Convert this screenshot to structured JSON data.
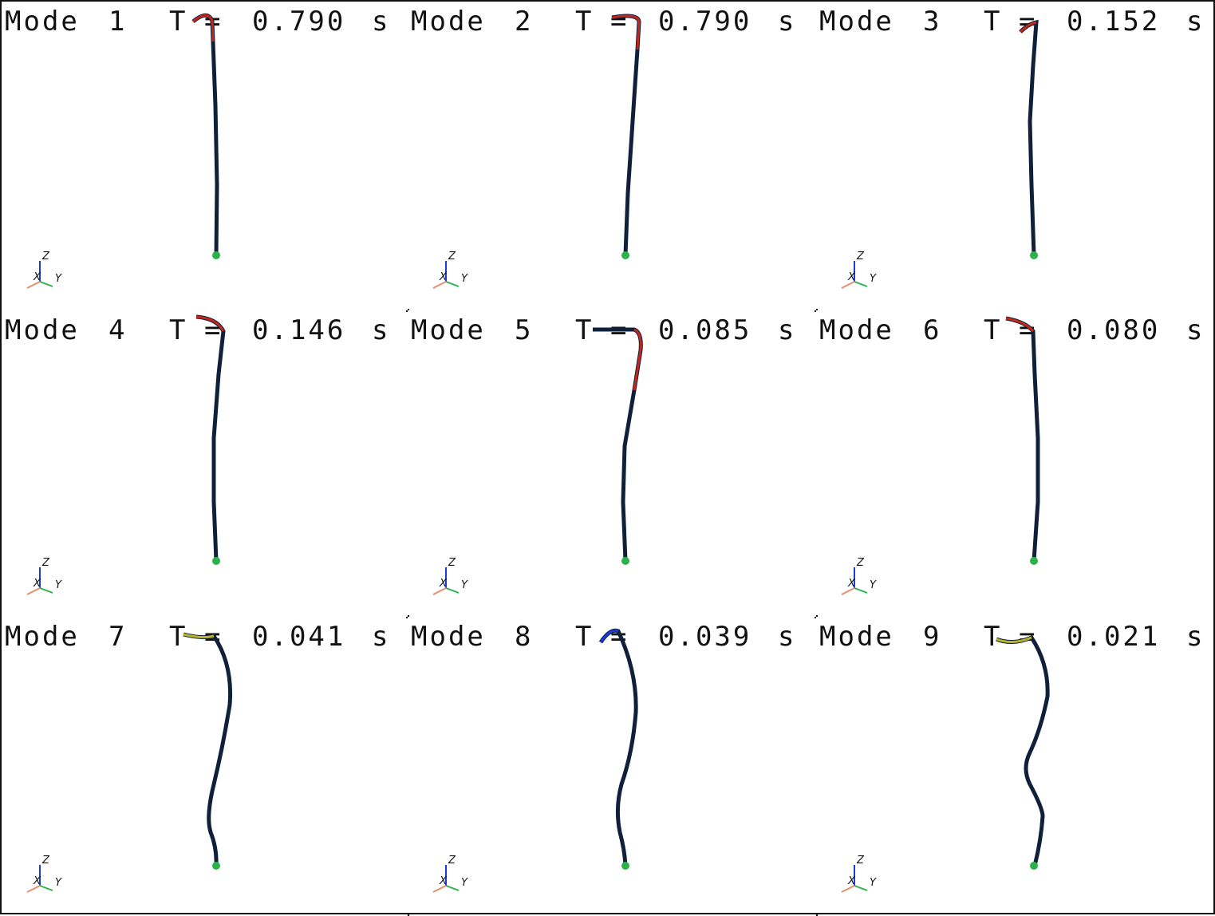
{
  "panels": [
    {
      "mode_label": "Mode",
      "mode_number": "1",
      "t_label": "T",
      "equals": "=",
      "period": "0.790",
      "unit": "s"
    },
    {
      "mode_label": "Mode",
      "mode_number": "2",
      "t_label": "T",
      "equals": "=",
      "period": "0.790",
      "unit": "s"
    },
    {
      "mode_label": "Mode",
      "mode_number": "3",
      "t_label": "T",
      "equals": "=",
      "period": "0.152",
      "unit": "s"
    },
    {
      "mode_label": "Mode",
      "mode_number": "4",
      "t_label": "T",
      "equals": "=",
      "period": "0.146",
      "unit": "s"
    },
    {
      "mode_label": "Mode",
      "mode_number": "5",
      "t_label": "T",
      "equals": "=",
      "period": "0.085",
      "unit": "s"
    },
    {
      "mode_label": "Mode",
      "mode_number": "6",
      "t_label": "T",
      "equals": "=",
      "period": "0.080",
      "unit": "s"
    },
    {
      "mode_label": "Mode",
      "mode_number": "7",
      "t_label": "T",
      "equals": "=",
      "period": "0.041",
      "unit": "s"
    },
    {
      "mode_label": "Mode",
      "mode_number": "8",
      "t_label": "T",
      "equals": "=",
      "period": "0.039",
      "unit": "s"
    },
    {
      "mode_label": "Mode",
      "mode_number": "9",
      "t_label": "T",
      "equals": "=",
      "period": "0.021",
      "unit": "s"
    }
  ],
  "axis_triad": {
    "z_label": "Z",
    "y_label": "Y",
    "x_label": "X"
  },
  "colors": {
    "structure": "#10203a",
    "base_node": "#2bb34a",
    "tip": "#c0281e",
    "border": "#111111"
  }
}
